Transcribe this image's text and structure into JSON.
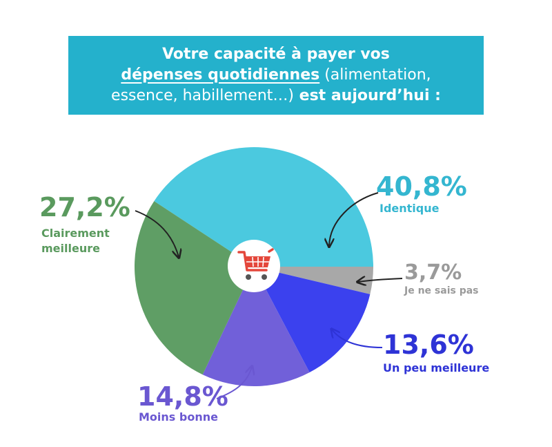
{
  "title": {
    "line1": "Votre capacité à payer vos",
    "line2_underlined": "dépenses quotidiennes",
    "line2_rest": " (alimentation,",
    "line3_regular": "essence, habillement…)",
    "line3_bold": " est aujourd’hui :"
  },
  "chart_data": {
    "type": "pie",
    "unit": "%",
    "slices": [
      {
        "label": "Identique",
        "value": 40.8,
        "display": "40,8%",
        "color": "#4bc9df"
      },
      {
        "label": "Je ne sais pas",
        "value": 3.7,
        "display": "3,7%",
        "color": "#a8a8a8"
      },
      {
        "label": "Un peu meilleure",
        "value": 13.6,
        "display": "13,6%",
        "color": "#3b41ee"
      },
      {
        "label": "Moins bonne",
        "value": 14.8,
        "display": "14,8%",
        "color": "#7160d9"
      },
      {
        "label": "Clairement meilleure",
        "value": 27.2,
        "display": "27,2%",
        "color": "#5f9e65"
      }
    ],
    "label_colors": {
      "Identique": "#34b6d0",
      "Je ne sais pas": "#9a9a9a",
      "Un peu meilleure": "#2e33d6",
      "Moins bonne": "#6a57d1",
      "Clairement meilleure": "#5a9a5e"
    },
    "center_icon": "shopping-cart-icon",
    "cart_color": "#e4473b"
  }
}
